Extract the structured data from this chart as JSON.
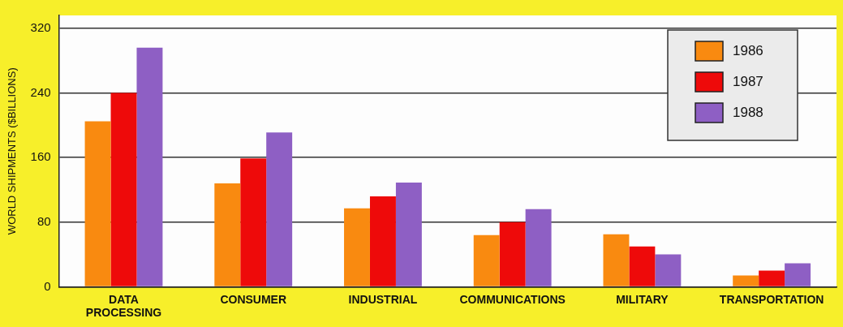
{
  "chart_data": {
    "type": "bar",
    "ylabel": "WORLD SHIPMENTS ($BILLIONS)",
    "categories": [
      "DATA PROCESSING",
      "CONSUMER",
      "INDUSTRIAL",
      "COMMUNICATIONS",
      "MILITARY",
      "TRANSPORTATION"
    ],
    "series": [
      {
        "name": "1986",
        "color": "#f98a10",
        "values": [
          205,
          128,
          97,
          64,
          65,
          14
        ]
      },
      {
        "name": "1987",
        "color": "#ee0a0a",
        "values": [
          240,
          159,
          112,
          80,
          50,
          20
        ]
      },
      {
        "name": "1988",
        "color": "#8e5fc4",
        "values": [
          296,
          191,
          129,
          96,
          40,
          29
        ]
      }
    ],
    "ylim": [
      0,
      336
    ],
    "yticks": [
      0,
      80,
      160,
      240,
      320
    ],
    "grid": "y",
    "legend": "top right"
  }
}
